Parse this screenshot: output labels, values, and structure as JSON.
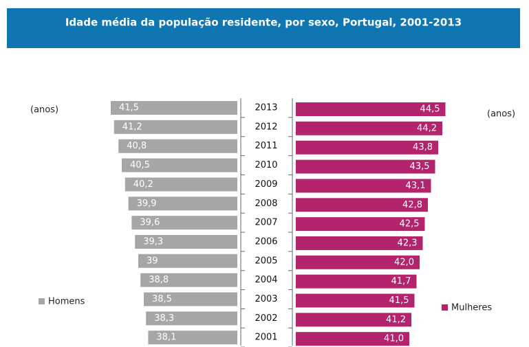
{
  "chart_data": {
    "type": "butterfly",
    "title": "Idade média da população residente, por sexo, Portugal, 2001-2013",
    "categories": [
      "2013",
      "2012",
      "2011",
      "2010",
      "2009",
      "2008",
      "2007",
      "2006",
      "2005",
      "2004",
      "2003",
      "2002",
      "2001"
    ],
    "series": [
      {
        "name": "Homens",
        "color": "#a6a6a6",
        "values": [
          41.5,
          41.2,
          40.8,
          40.5,
          40.2,
          39.9,
          39.6,
          39.3,
          39,
          38.8,
          38.5,
          38.3,
          38.1
        ],
        "value_labels": [
          "41,5",
          "41,2",
          "40,8",
          "40,5",
          "40,2",
          "39,9",
          "39,6",
          "39,3",
          "39",
          "38,8",
          "38,5",
          "38,3",
          "38,1"
        ]
      },
      {
        "name": "Mulheres",
        "color": "#b3246d",
        "values": [
          44.5,
          44.2,
          43.8,
          43.5,
          43.1,
          42.8,
          42.5,
          42.3,
          42.0,
          41.7,
          41.5,
          41.2,
          41.0
        ],
        "value_labels": [
          "44,5",
          "44,2",
          "43,8",
          "43,5",
          "43,1",
          "42,8",
          "42,5",
          "42,3",
          "42,0",
          "41,7",
          "41,5",
          "41,2",
          "41,0"
        ]
      }
    ],
    "annotations": [
      "(anos)",
      "(anos)"
    ],
    "xlim": [
      30,
      45
    ]
  }
}
